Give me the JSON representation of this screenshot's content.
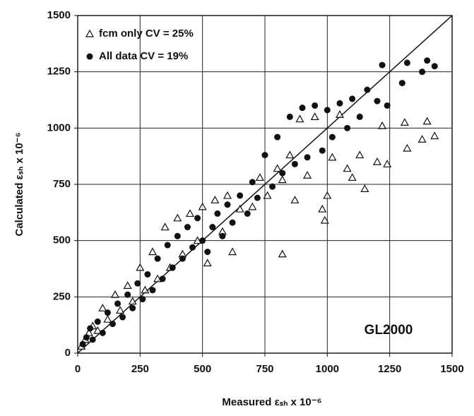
{
  "chart_data": {
    "type": "scatter",
    "x_label": "Measured εₛₕ x 10⁻⁶",
    "y_label": "Calculated εₛₕ x 10⁻⁶",
    "annotation": "GL2000",
    "xlim": [
      0,
      1500
    ],
    "ylim": [
      0,
      1500
    ],
    "xticks": [
      0,
      250,
      500,
      750,
      1000,
      1250,
      1500
    ],
    "yticks": [
      0,
      250,
      500,
      750,
      1000,
      1250,
      1500
    ],
    "grid": true,
    "legend": "upper left",
    "line_of_equality": {
      "x": [
        0,
        1500
      ],
      "y": [
        0,
        1500
      ]
    },
    "series": [
      {
        "name": "fcm only CV = 25%",
        "marker": "triangle",
        "color": "#111111",
        "x": [
          15,
          30,
          45,
          60,
          80,
          100,
          120,
          150,
          170,
          200,
          220,
          250,
          270,
          300,
          320,
          350,
          370,
          400,
          420,
          450,
          480,
          500,
          520,
          550,
          580,
          600,
          620,
          650,
          700,
          730,
          760,
          800,
          820,
          850,
          870,
          890,
          920,
          950,
          980,
          1000,
          1020,
          1050,
          1080,
          1100,
          1130,
          1150,
          1200,
          1220,
          1240,
          1310,
          1320,
          1380,
          1400,
          1430,
          820,
          990
        ],
        "values": [
          30,
          60,
          90,
          120,
          100,
          200,
          150,
          260,
          190,
          300,
          230,
          380,
          280,
          450,
          330,
          560,
          380,
          600,
          440,
          620,
          500,
          650,
          400,
          680,
          540,
          700,
          450,
          640,
          650,
          780,
          700,
          820,
          770,
          880,
          680,
          1040,
          790,
          1050,
          640,
          700,
          870,
          1060,
          820,
          780,
          880,
          730,
          850,
          1010,
          840,
          1025,
          910,
          950,
          1030,
          965,
          440,
          590
        ]
      },
      {
        "name": "All data CV = 19%",
        "marker": "circle",
        "color": "#111111",
        "x": [
          20,
          35,
          50,
          60,
          80,
          100,
          120,
          140,
          160,
          180,
          200,
          220,
          240,
          260,
          280,
          300,
          320,
          340,
          360,
          380,
          400,
          420,
          440,
          460,
          480,
          500,
          520,
          540,
          560,
          580,
          600,
          620,
          650,
          680,
          700,
          720,
          750,
          780,
          800,
          820,
          850,
          870,
          900,
          920,
          950,
          980,
          1000,
          1020,
          1050,
          1080,
          1100,
          1130,
          1160,
          1200,
          1220,
          1240,
          1300,
          1320,
          1380,
          1400,
          1430
        ],
        "values": [
          40,
          70,
          110,
          60,
          140,
          90,
          180,
          130,
          220,
          160,
          260,
          200,
          310,
          240,
          350,
          280,
          420,
          330,
          480,
          380,
          520,
          420,
          560,
          470,
          600,
          500,
          450,
          560,
          620,
          520,
          660,
          580,
          700,
          620,
          760,
          690,
          880,
          740,
          960,
          800,
          1050,
          840,
          1090,
          870,
          1100,
          900,
          1080,
          960,
          1110,
          1000,
          1130,
          1050,
          1170,
          1120,
          1280,
          1100,
          1200,
          1290,
          1250,
          1300,
          1275
        ]
      }
    ]
  }
}
